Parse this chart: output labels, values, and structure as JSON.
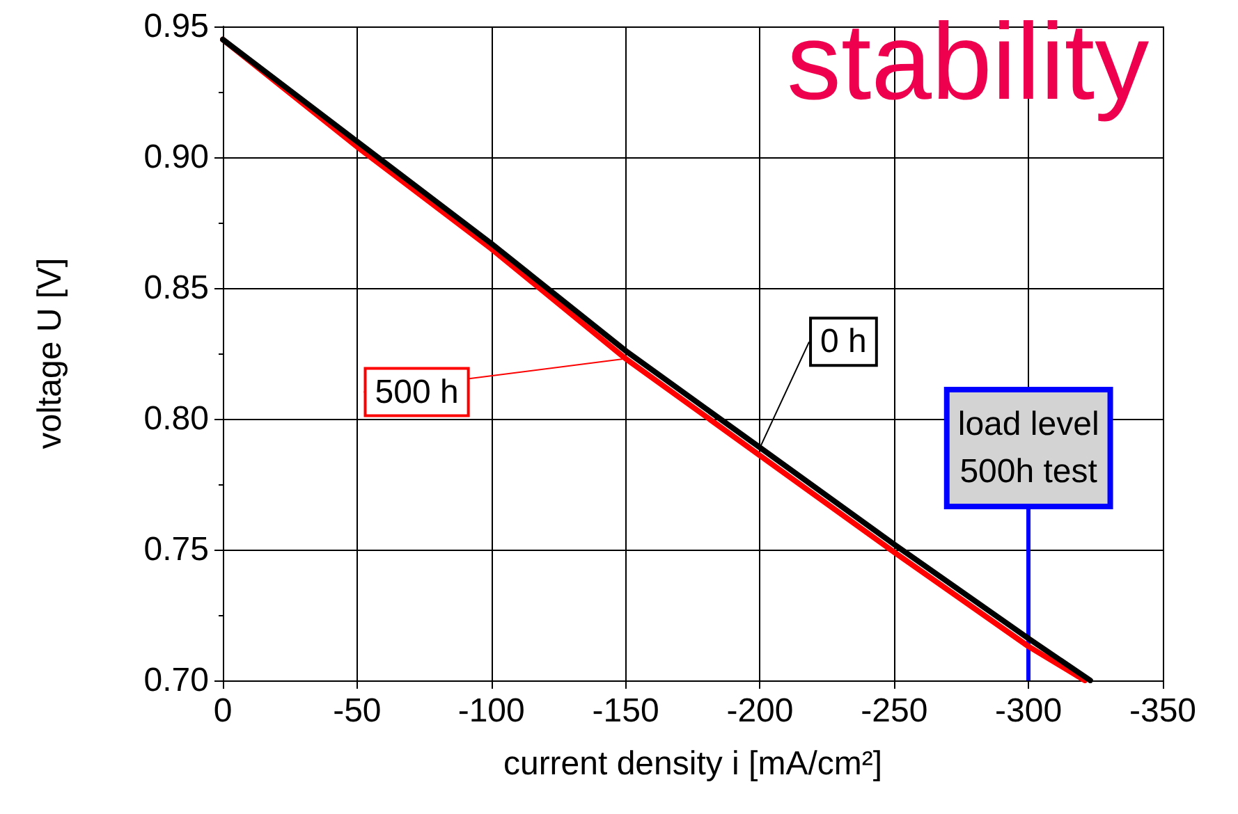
{
  "chart_data": {
    "type": "line",
    "title": "stability",
    "xlabel": "current density i [mA/cm²]",
    "ylabel": "voltage U [V]",
    "xlim": [
      0,
      -350
    ],
    "xticks": [
      0,
      -50,
      -100,
      -150,
      -200,
      -250,
      -300,
      -350
    ],
    "ylim": [
      0.7,
      0.95
    ],
    "yticks": [
      {
        "value": 0.7,
        "label": "0.70"
      },
      0.75,
      {
        "value": 0.8,
        "label": "0.80"
      },
      0.85,
      {
        "value": 0.9,
        "label": "0.90"
      },
      0.95
    ],
    "grid": true,
    "legend": false,
    "marker": "none",
    "line_style": "solid",
    "series": [
      {
        "name": "0 h",
        "color": "#000000",
        "x": [
          0,
          -50,
          -100,
          -150,
          -200,
          -250,
          -300,
          -323
        ],
        "values": [
          0.945,
          0.906,
          0.867,
          0.826,
          0.789,
          0.752,
          0.716,
          0.7
        ]
      },
      {
        "name": "500 h",
        "color": "#ff0000",
        "x": [
          0,
          -50,
          -100,
          -150,
          -200,
          -250,
          -300,
          -321
        ],
        "values": [
          0.945,
          0.904,
          0.865,
          0.823,
          0.786,
          0.749,
          0.713,
          0.7
        ]
      }
    ],
    "ref_lines": [
      {
        "axis": "x",
        "value": -300,
        "label": "load level\n500h test",
        "color": "#0000ff"
      }
    ]
  }
}
